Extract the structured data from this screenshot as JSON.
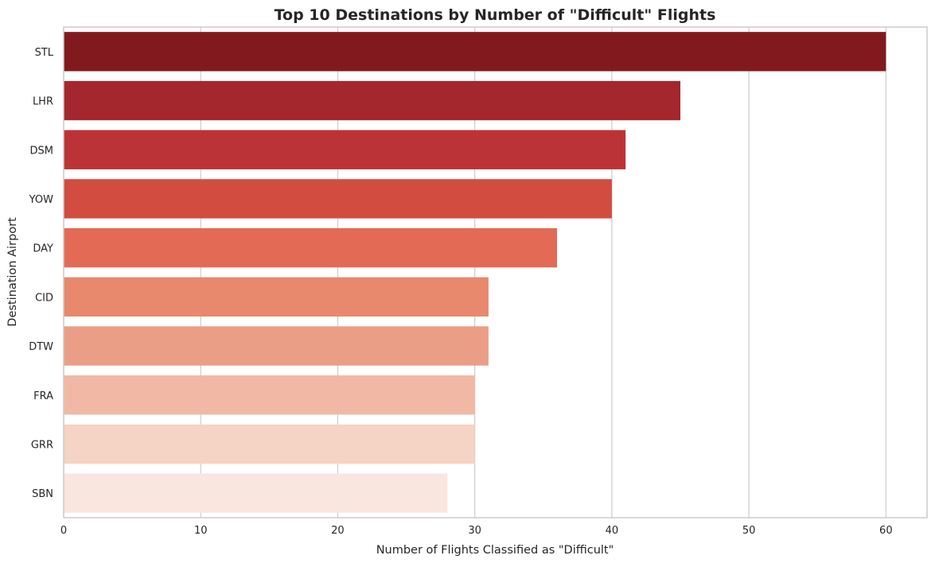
{
  "chart_data": {
    "type": "bar",
    "orientation": "horizontal",
    "title": "Top 10 Destinations by Number of \"Difficult\" Flights",
    "xlabel": "Number of Flights Classified as \"Difficult\"",
    "ylabel": "Destination Airport",
    "categories": [
      "STL",
      "LHR",
      "DSM",
      "YOW",
      "DAY",
      "CID",
      "DTW",
      "FRA",
      "GRR",
      "SBN"
    ],
    "values": [
      60,
      45,
      41,
      40,
      36,
      31,
      31,
      30,
      30,
      28
    ],
    "xlim": [
      0,
      63
    ],
    "xticks": [
      0,
      10,
      20,
      30,
      40,
      50,
      60
    ],
    "grid": "vertical",
    "colors": [
      "#82191f",
      "#a4272d",
      "#bb3337",
      "#d24c40",
      "#e36a55",
      "#e8886d",
      "#eb9e86",
      "#f1b9a5",
      "#f5d3c5",
      "#f9e6df"
    ]
  }
}
